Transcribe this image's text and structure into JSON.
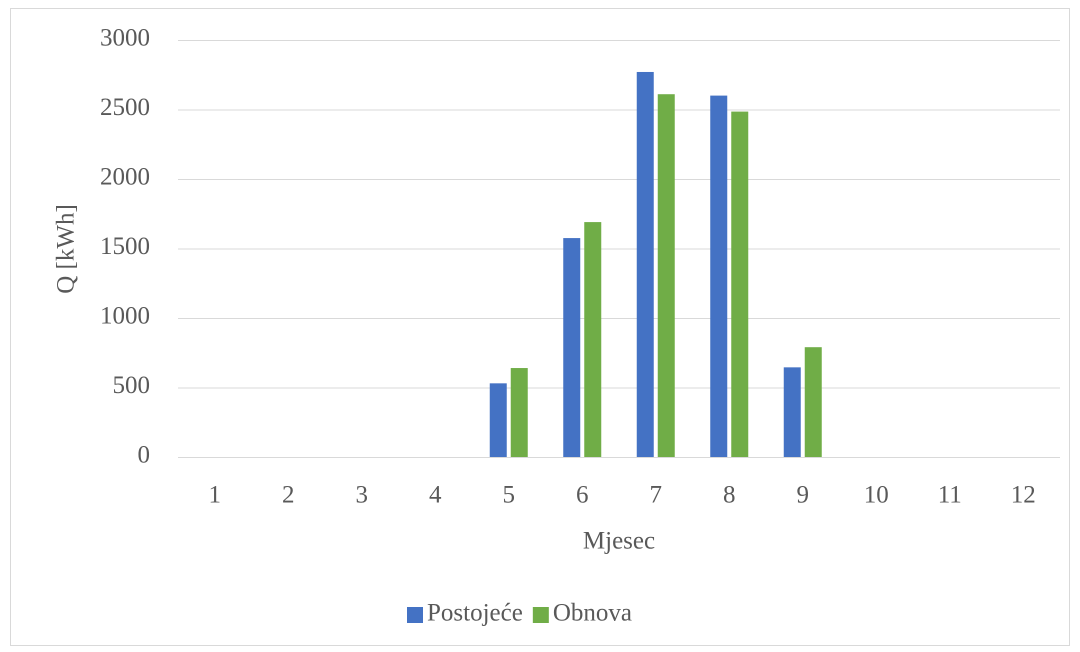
{
  "chart_data": {
    "type": "bar",
    "categories": [
      "1",
      "2",
      "3",
      "4",
      "5",
      "6",
      "7",
      "8",
      "9",
      "10",
      "11",
      "12"
    ],
    "series": [
      {
        "name": "Postojeće",
        "color": "#4472c4",
        "values": [
          0,
          0,
          0,
          0,
          530,
          1575,
          2770,
          2600,
          645,
          0,
          0,
          0
        ]
      },
      {
        "name": "Obnova",
        "color": "#70ad47",
        "values": [
          0,
          0,
          0,
          0,
          640,
          1690,
          2610,
          2485,
          790,
          0,
          0,
          0
        ]
      }
    ],
    "ylim": [
      0,
      3000
    ],
    "yticks": [
      0,
      500,
      1000,
      1500,
      2000,
      2500,
      3000
    ],
    "y_label": "Q [kWh]",
    "x_label": "Mjesec",
    "grid": true,
    "legend": "bottom"
  }
}
